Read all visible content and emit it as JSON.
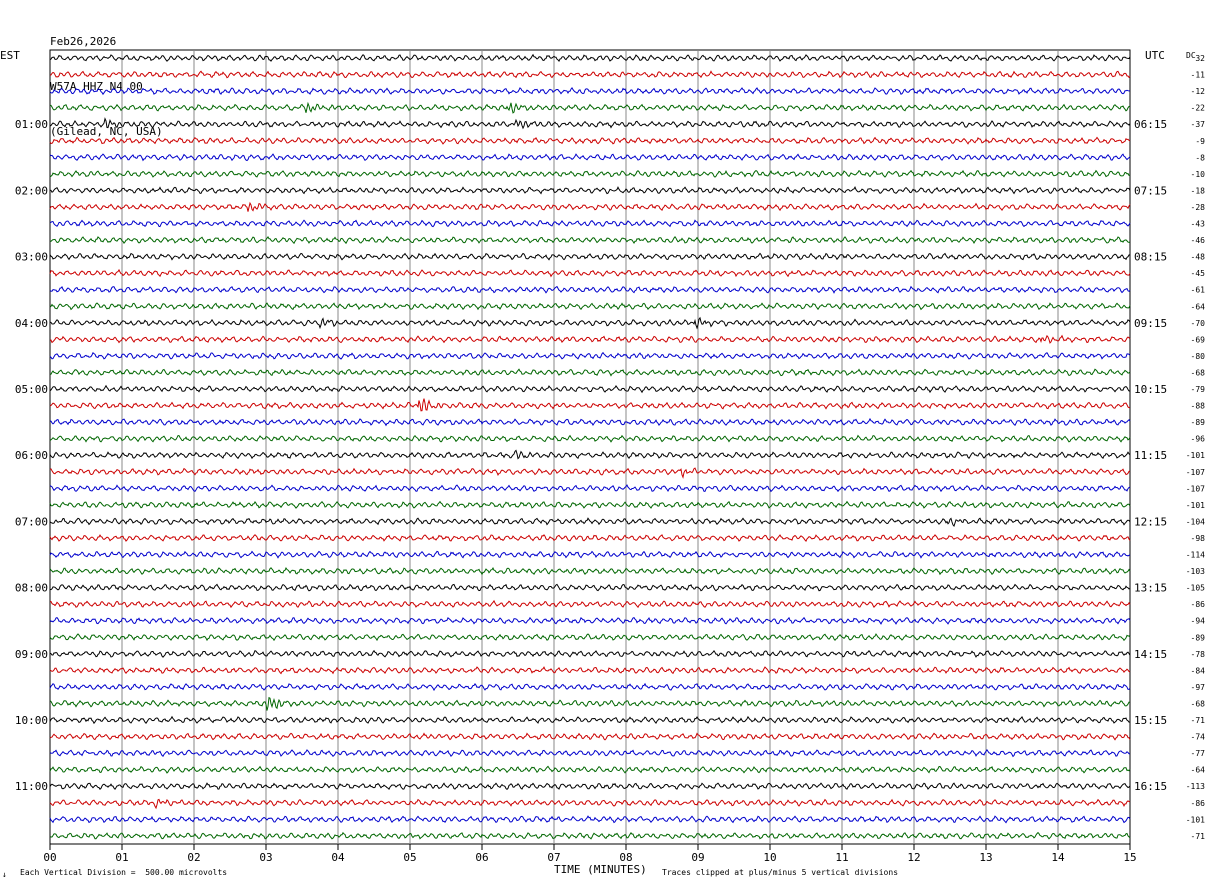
{
  "header": {
    "date": "Feb26,2026",
    "station": "W57A HHZ N4 00",
    "location": "(Gilead, NC, USA)"
  },
  "left_tz": "EST",
  "right_tz": "UTC",
  "dc_label": "DC",
  "footer": {
    "left_mark": "↓",
    "division": "Each Vertical Division =  500.00 microvolts",
    "clipping": "Traces clipped at plus/minus 5 vertical divisions"
  },
  "colors": {
    "traces": [
      "#000000",
      "#cc0000",
      "#0000cc",
      "#006600"
    ],
    "grid": "#888888"
  },
  "chart_data": {
    "type": "line",
    "title": "",
    "xlabel": "TIME (MINUTES)",
    "xlim": [
      0,
      15
    ],
    "x_ticks": [
      "00",
      "01",
      "02",
      "03",
      "04",
      "05",
      "06",
      "07",
      "08",
      "09",
      "10",
      "11",
      "12",
      "13",
      "14",
      "15"
    ],
    "rows": 48,
    "row_minutes": 15,
    "left_hour_labels": [
      "01:00",
      "02:00",
      "03:00",
      "04:00",
      "05:00",
      "06:00",
      "07:00",
      "08:00",
      "09:00",
      "10:00",
      "11:00"
    ],
    "right_hour_labels": [
      "06:15",
      "07:15",
      "08:15",
      "09:15",
      "10:15",
      "11:15",
      "12:15",
      "13:15",
      "14:15",
      "15:15",
      "16:15"
    ],
    "dc_offsets": [
      32,
      -11,
      -12,
      -22,
      -37,
      -9,
      -8,
      -10,
      -18,
      -28,
      -43,
      -46,
      -48,
      -45,
      -61,
      -64,
      -70,
      -69,
      -80,
      -68,
      -79,
      -88,
      -89,
      -96,
      -101,
      -107,
      -107,
      -101,
      -104,
      -98,
      -114,
      -103,
      -105,
      -86,
      -94,
      -89,
      -78,
      -84,
      -97,
      -68,
      -71,
      -74,
      -77,
      -64,
      -113,
      -86,
      -101,
      -71
    ],
    "events": [
      {
        "row": 3,
        "minute": 3.6,
        "amp": 4
      },
      {
        "row": 3,
        "minute": 6.4,
        "amp": 5
      },
      {
        "row": 4,
        "minute": 0.8,
        "amp": 4
      },
      {
        "row": 4,
        "minute": 6.5,
        "amp": 4
      },
      {
        "row": 9,
        "minute": 2.8,
        "amp": 4
      },
      {
        "row": 16,
        "minute": 3.8,
        "amp": 3
      },
      {
        "row": 16,
        "minute": 9.0,
        "amp": 4
      },
      {
        "row": 17,
        "minute": 13.8,
        "amp": 3
      },
      {
        "row": 21,
        "minute": 5.15,
        "amp": 7
      },
      {
        "row": 24,
        "minute": 6.5,
        "amp": 3
      },
      {
        "row": 25,
        "minute": 8.8,
        "amp": 3
      },
      {
        "row": 28,
        "minute": 12.5,
        "amp": 3
      },
      {
        "row": 39,
        "minute": 3.05,
        "amp": 7
      },
      {
        "row": 45,
        "minute": 1.5,
        "amp": 3
      }
    ]
  }
}
